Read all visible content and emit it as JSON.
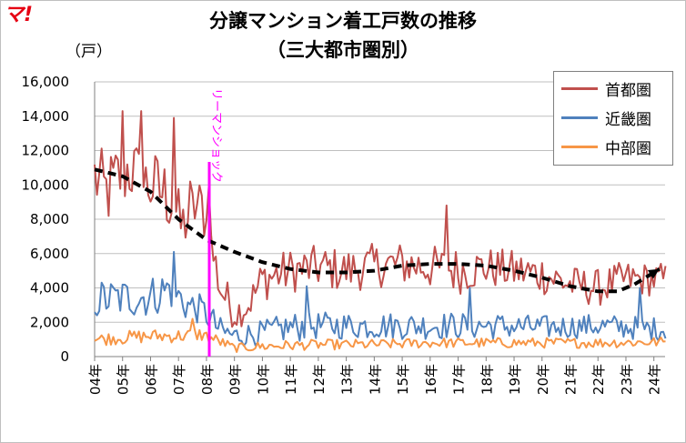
{
  "logo": {
    "text": "マ!"
  },
  "title": {
    "line1": "分譲マンション着工戸数の推移",
    "line2": "（三大都市圏別）"
  },
  "chart_data": {
    "type": "line",
    "title": "分譲マンション着工戸数の推移（三大都市圏別）",
    "ylabel": "（戸）",
    "ylim": [
      0,
      16000
    ],
    "yticks": [
      "16,000",
      "14,000",
      "12,000",
      "10,000",
      "8,000",
      "6,000",
      "4,000",
      "2,000",
      "0"
    ],
    "xlim": [
      2004,
      2024.4
    ],
    "xticks": [
      "04年",
      "05年",
      "06年",
      "07年",
      "08年",
      "09年",
      "10年",
      "11年",
      "12年",
      "13年",
      "14年",
      "15年",
      "16年",
      "17年",
      "18年",
      "19年",
      "20年",
      "21年",
      "22年",
      "23年",
      "24年"
    ],
    "grid": true,
    "legend_position": "top-right",
    "annotation": {
      "text": "リーマンショック",
      "x": 2008.1,
      "color": "#ff00ff"
    },
    "series": [
      {
        "name": "首都圏",
        "color": "#c0504d",
        "samples_per_year": 12,
        "key_x": [
          2004.0,
          2004.4,
          2004.9,
          2005.3,
          2005.7,
          2006.0,
          2006.5,
          2006.8,
          2007.1,
          2007.5,
          2007.8,
          2008.1,
          2008.5,
          2009.0,
          2009.5,
          2010.0,
          2011.0,
          2012.0,
          2013.0,
          2014.0,
          2015.0,
          2016.0,
          2017.0,
          2018.0,
          2019.0,
          2020.0,
          2021.0,
          2022.0,
          2023.0,
          2023.5,
          2024.2
        ],
        "key_y": [
          10500,
          9500,
          10500,
          11000,
          10000,
          10000,
          9500,
          9000,
          7500,
          8500,
          9000,
          7000,
          4000,
          2500,
          3000,
          4500,
          5000,
          5200,
          5000,
          5300,
          5400,
          5200,
          5000,
          5200,
          5000,
          4800,
          4200,
          4000,
          4500,
          4500,
          4500
        ],
        "amplitude": [
          2200,
          2300,
          2300,
          2200,
          2200,
          2200,
          2200,
          2000,
          1800,
          1600,
          1500,
          1500,
          1400,
          1000,
          1000,
          1300,
          1300,
          1300,
          1300,
          1300,
          1300,
          1300,
          1400,
          1200,
          1200,
          1200,
          1100,
          1100,
          1100,
          1000,
          1000
        ],
        "highlights": [
          [
            2005.0,
            14300
          ],
          [
            2005.7,
            14300
          ],
          [
            2006.8,
            13900
          ],
          [
            2016.6,
            8800
          ],
          [
            2007.4,
            10200
          ],
          [
            2008.1,
            9900
          ]
        ]
      },
      {
        "name": "近畿圏",
        "color": "#4f81bd",
        "samples_per_year": 12,
        "key_x": [
          2004.0,
          2005.0,
          2006.0,
          2006.7,
          2007.3,
          2007.7,
          2008.0,
          2008.5,
          2009.0,
          2010.0,
          2011.0,
          2012.0,
          2014.0,
          2016.0,
          2018.0,
          2020.0,
          2022.0,
          2024.2
        ],
        "key_y": [
          3300,
          3400,
          3500,
          4000,
          3000,
          2800,
          2500,
          1500,
          1200,
          1400,
          1700,
          1800,
          1800,
          1800,
          1800,
          1700,
          1800,
          1600
        ],
        "amplitude": [
          1200,
          1200,
          1200,
          1300,
          1000,
          900,
          900,
          800,
          700,
          700,
          900,
          800,
          800,
          800,
          800,
          700,
          700,
          700
        ],
        "highlights": [
          [
            2006.8,
            6100
          ],
          [
            2011.6,
            4100
          ],
          [
            2017.4,
            4000
          ],
          [
            2023.5,
            4000
          ]
        ]
      },
      {
        "name": "中部圏",
        "color": "#f79646",
        "samples_per_year": 12,
        "key_x": [
          2004.0,
          2005.0,
          2006.0,
          2007.0,
          2007.8,
          2008.3,
          2009.0,
          2010.0,
          2012.0,
          2014.0,
          2016.0,
          2018.0,
          2020.0,
          2022.0,
          2024.2
        ],
        "key_y": [
          1000,
          1100,
          1200,
          1200,
          1300,
          1000,
          500,
          600,
          700,
          700,
          800,
          800,
          800,
          800,
          850
        ],
        "amplitude": [
          350,
          400,
          400,
          400,
          400,
          350,
          250,
          300,
          300,
          300,
          300,
          300,
          300,
          300,
          300
        ],
        "highlights": [
          [
            2007.5,
            2200
          ]
        ]
      },
      {
        "name": "trend",
        "color": "#000000",
        "dashed": true,
        "x": [
          2004.0,
          2005.0,
          2006.0,
          2007.0,
          2008.0,
          2009.0,
          2010.0,
          2011.0,
          2012.0,
          2013.0,
          2014.0,
          2015.0,
          2016.0,
          2017.0,
          2018.0,
          2019.0,
          2020.0,
          2021.0,
          2022.0,
          2022.7,
          2023.3,
          2024.2
        ],
        "y": [
          10900,
          10500,
          9600,
          8000,
          6800,
          6100,
          5500,
          5100,
          4900,
          4900,
          5000,
          5300,
          5400,
          5400,
          5300,
          5000,
          4600,
          4100,
          3800,
          3800,
          4200,
          5100
        ]
      }
    ]
  }
}
